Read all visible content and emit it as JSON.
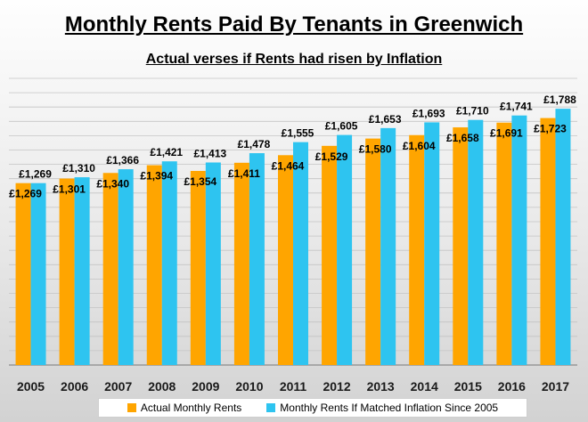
{
  "chart_data": {
    "type": "bar",
    "title": "Monthly Rents Paid By Tenants in Greenwich",
    "subtitle": "Actual verses if Rents had risen by Inflation",
    "categories": [
      "2005",
      "2006",
      "2007",
      "2008",
      "2009",
      "2010",
      "2011",
      "2012",
      "2013",
      "2014",
      "2015",
      "2016",
      "2017"
    ],
    "series": [
      {
        "name": "Actual Monthly Rents",
        "color": "#FFA500",
        "values": [
          1269,
          1301,
          1340,
          1394,
          1354,
          1411,
          1464,
          1529,
          1580,
          1604,
          1658,
          1691,
          1723
        ],
        "labels": [
          "£1,269",
          "£1,301",
          "£1,340",
          "£1,394",
          "£1,354",
          "£1,411",
          "£1,464",
          "£1,529",
          "£1,580",
          "£1,604",
          "£1,658",
          "£1,691",
          "£1,723"
        ]
      },
      {
        "name": "Monthly Rents If Matched Inflation Since 2005",
        "color": "#2EC4F0",
        "values": [
          1269,
          1310,
          1366,
          1421,
          1413,
          1478,
          1555,
          1605,
          1653,
          1693,
          1710,
          1741,
          1788
        ],
        "labels": [
          "£1,269",
          "£1,310",
          "£1,366",
          "£1,421",
          "£1,413",
          "£1,478",
          "£1,555",
          "£1,605",
          "£1,653",
          "£1,693",
          "£1,710",
          "£1,741",
          "£1,788"
        ]
      }
    ],
    "xlabel": "",
    "ylabel": "",
    "ylim": [
      0,
      2000
    ],
    "y_gridlines": true,
    "legend_position": "bottom"
  }
}
